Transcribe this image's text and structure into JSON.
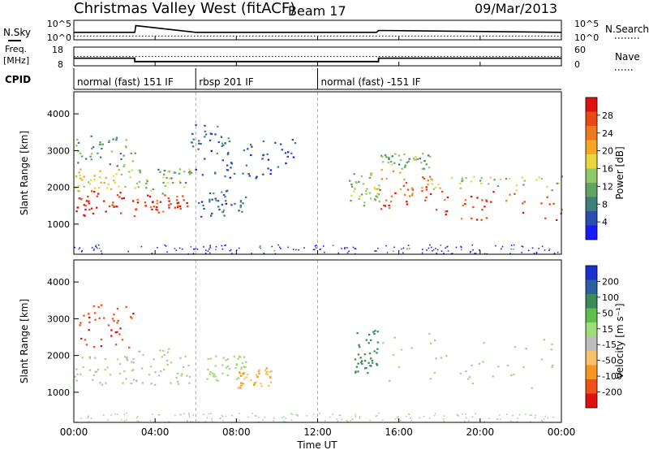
{
  "header": {
    "station": "Christmas Valley West (fitACF)",
    "beam": "Beam 17",
    "date": "09/Mar/2013"
  },
  "status_panels": {
    "nsky_label": "N.Sky",
    "nsearch_label": "N.Search",
    "noise_ticks_left": [
      "10^5",
      "10^0"
    ],
    "noise_ticks_right": [
      "10^5",
      "10^0"
    ],
    "freq_label_line1": "Freq.",
    "freq_label_line2": "[MHz]",
    "freq_ticks": [
      "18",
      "8"
    ],
    "nave_label": "Nave",
    "nave_ticks": [
      "60",
      "0"
    ],
    "cpid_label": "CPID",
    "cpid_segments": [
      {
        "label": "normal (fast) 151 IF",
        "start_ut": 0.0,
        "end_ut": 6.0
      },
      {
        "label": "rbsp 201 IF",
        "start_ut": 6.0,
        "end_ut": 12.0
      },
      {
        "label": "normal (fast) -151 IF",
        "start_ut": 12.0,
        "end_ut": 24.0
      }
    ]
  },
  "x_axis": {
    "label": "Time UT",
    "ticks": [
      "00:00",
      "04:00",
      "08:00",
      "12:00",
      "16:00",
      "20:00",
      "00:00"
    ]
  },
  "panels": {
    "power": {
      "ylabel": "Slant Range [km]",
      "yticks": [
        "4000",
        "3000",
        "2000",
        "1000"
      ],
      "colorbar_label": "Power [dB]",
      "colorbar_ticks": [
        "28",
        "24",
        "20",
        "16",
        "12",
        "8",
        "4"
      ]
    },
    "velocity": {
      "ylabel": "Slant Range [km]",
      "yticks": [
        "4000",
        "3000",
        "2000",
        "1000"
      ],
      "colorbar_label": "Velocity [m s⁻¹]",
      "colorbar_ticks": [
        "200",
        "100",
        "50",
        "15",
        "-15",
        "-50",
        "-100",
        "-200"
      ]
    }
  },
  "colors": {
    "power_scale": [
      "#1a1aff",
      "#2b4fb0",
      "#3f7f7a",
      "#5fa463",
      "#8fc96a",
      "#e8d840",
      "#f5a623",
      "#f07a1a",
      "#e84a12",
      "#e01010"
    ],
    "velocity_scale": [
      "#e01010",
      "#f0501a",
      "#f5961e",
      "#f7c26a",
      "#bdbdbd",
      "#9fdc7a",
      "#5fbf4a",
      "#3a8a5a",
      "#2a5fa0",
      "#1a2fd0"
    ]
  },
  "chart_data": [
    {
      "type": "line",
      "name": "noise",
      "x_unit": "hours UT",
      "xlim": [
        0,
        24
      ],
      "series": [
        {
          "name": "N.Sky",
          "x": [
            0,
            3,
            3.05,
            6,
            12,
            14.9,
            15,
            24
          ],
          "y_log10": [
            2.0,
            2.0,
            3.8,
            2.0,
            2.0,
            2.0,
            2.5,
            2.0
          ]
        },
        {
          "name": "N.Search",
          "x": [
            0,
            24
          ],
          "y_log10": [
            1.0,
            1.0
          ]
        }
      ]
    },
    {
      "type": "line",
      "name": "frequency and nave",
      "x_unit": "hours UT",
      "xlim": [
        0,
        24
      ],
      "series": [
        {
          "name": "Freq. [MHz]",
          "x": [
            0,
            3,
            3,
            15,
            15,
            24
          ],
          "y": [
            12,
            12,
            10,
            10,
            12,
            12
          ]
        },
        {
          "name": "Nave",
          "x": [
            0,
            24
          ],
          "y": [
            30,
            30
          ]
        }
      ]
    },
    {
      "type": "heatmap",
      "name": "power",
      "xlabel": "Time UT",
      "ylabel": "Slant Range [km]",
      "ylim": [
        180,
        4600
      ],
      "colorbar": {
        "label": "Power [dB]",
        "range": [
          0,
          30
        ]
      },
      "regions": [
        {
          "t": [
            0,
            3.0
          ],
          "r": [
            1200,
            1900
          ],
          "value": 28
        },
        {
          "t": [
            0,
            3.0
          ],
          "r": [
            1900,
            2500
          ],
          "value": 16
        },
        {
          "t": [
            0,
            3.0
          ],
          "r": [
            2500,
            3400
          ],
          "value": 10
        },
        {
          "t": [
            3.0,
            5.7
          ],
          "r": [
            1300,
            1800
          ],
          "value": 26
        },
        {
          "t": [
            3.0,
            5.7
          ],
          "r": [
            1800,
            2500
          ],
          "value": 12
        },
        {
          "t": [
            5.7,
            7.7
          ],
          "r": [
            2200,
            3700
          ],
          "value": 6
        },
        {
          "t": [
            6.0,
            8.5
          ],
          "r": [
            1200,
            2000
          ],
          "value": 6
        },
        {
          "t": [
            7.5,
            11.0
          ],
          "r": [
            2200,
            3300
          ],
          "value": 5
        },
        {
          "t": [
            13.5,
            15.0
          ],
          "r": [
            1500,
            2400
          ],
          "value": 14
        },
        {
          "t": [
            15.0,
            17.5
          ],
          "r": [
            1400,
            2500
          ],
          "value": 24
        },
        {
          "t": [
            15.0,
            17.5
          ],
          "r": [
            2500,
            3000
          ],
          "value": 12
        },
        {
          "t": [
            17.5,
            24.0
          ],
          "r": [
            1100,
            1900
          ],
          "value": 26
        },
        {
          "t": [
            17.5,
            24.0
          ],
          "r": [
            1900,
            2300
          ],
          "value": 14
        }
      ]
    },
    {
      "type": "heatmap",
      "name": "velocity",
      "xlabel": "Time UT",
      "ylabel": "Slant Range [km]",
      "ylim": [
        180,
        4600
      ],
      "colorbar": {
        "label": "Velocity [m s⁻¹]",
        "range": [
          -250,
          250
        ]
      },
      "regions": [
        {
          "t": [
            0,
            3.0
          ],
          "r": [
            1200,
            2000
          ],
          "value": 0
        },
        {
          "t": [
            0.2,
            3.0
          ],
          "r": [
            2200,
            3400
          ],
          "value": -200
        },
        {
          "t": [
            3.0,
            5.7
          ],
          "r": [
            1200,
            2200
          ],
          "value": 0
        },
        {
          "t": [
            6.5,
            8.5
          ],
          "r": [
            1300,
            2000
          ],
          "value": 30
        },
        {
          "t": [
            8.0,
            9.8
          ],
          "r": [
            1100,
            1700
          ],
          "value": -100
        },
        {
          "t": [
            13.8,
            15.0
          ],
          "r": [
            1500,
            2700
          ],
          "value": 120
        },
        {
          "t": [
            15.0,
            24.0
          ],
          "r": [
            1100,
            2600
          ],
          "value": 0
        }
      ]
    }
  ]
}
